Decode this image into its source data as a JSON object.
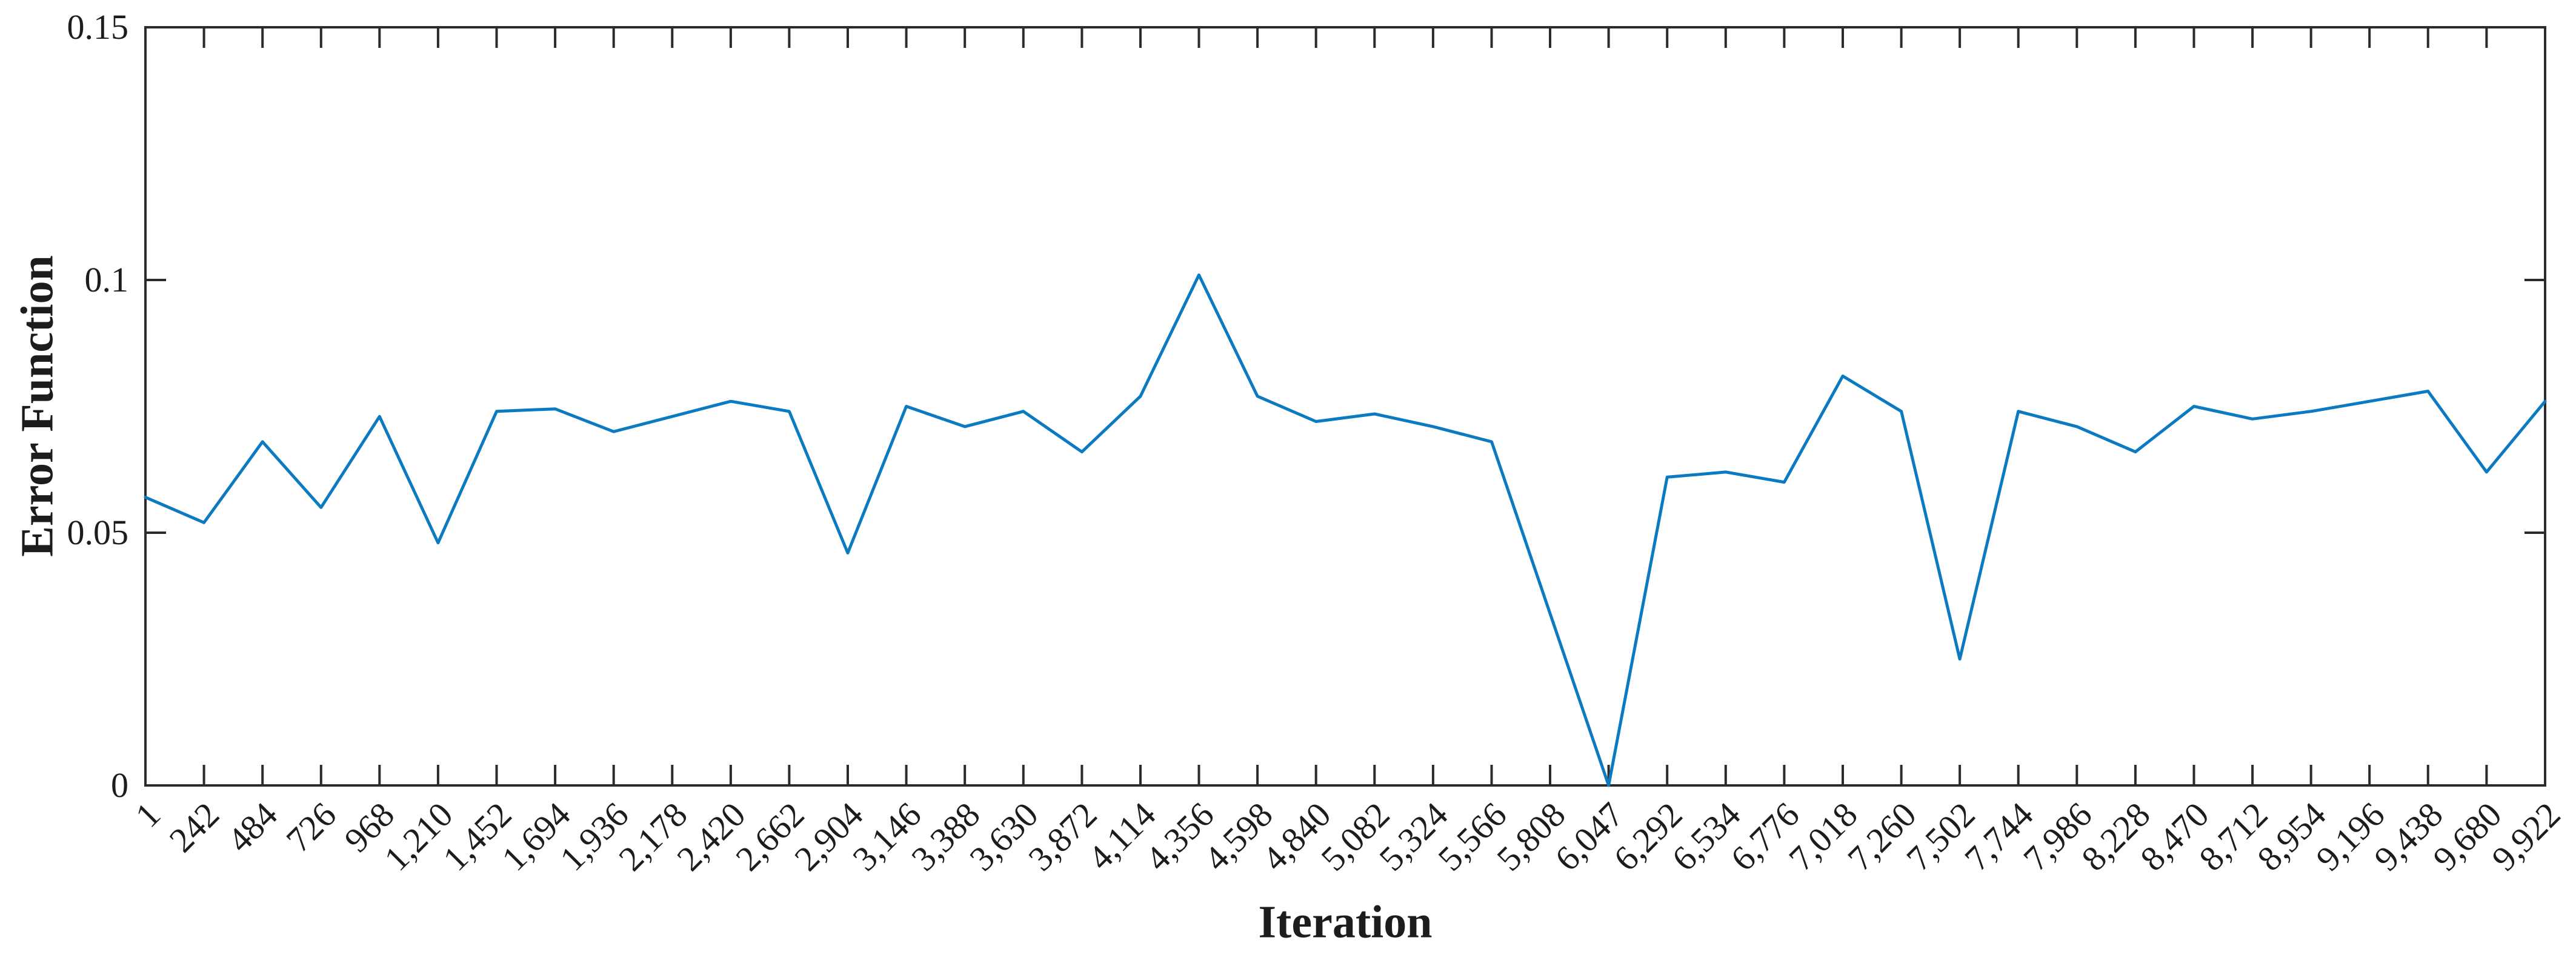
{
  "chart_data": {
    "type": "line",
    "title": "",
    "xlabel": "Iteration",
    "ylabel": "Error Function",
    "legend": "none",
    "grid": false,
    "box": true,
    "tick_direction": "in",
    "line_color": "#0b7ac0",
    "axis_color": "#2b2b2b",
    "text_color": "#1c1c1c",
    "background_color": "#ffffff",
    "ylim": [
      0,
      0.15
    ],
    "yticks": [
      0,
      0.05,
      0.1,
      0.15
    ],
    "ytick_labels": [
      "0",
      "0.05",
      "0.1",
      "0.15"
    ],
    "categories": [
      "1",
      "242",
      "484",
      "726",
      "968",
      "1,210",
      "1,452",
      "1,694",
      "1,936",
      "2,178",
      "2,420",
      "2,662",
      "2,904",
      "3,146",
      "3,388",
      "3,630",
      "3,872",
      "4,114",
      "4,356",
      "4,598",
      "4,840",
      "5,082",
      "5,324",
      "5,566",
      "5,808",
      "6,047",
      "6,292",
      "6,534",
      "6,776",
      "7,018",
      "7,260",
      "7,502",
      "7,744",
      "7,986",
      "8,228",
      "8,470",
      "8,712",
      "8,954",
      "9,196",
      "9,438",
      "9,680",
      "9,922"
    ],
    "values": [
      0.057,
      0.052,
      0.068,
      0.055,
      0.073,
      0.048,
      0.074,
      0.0745,
      0.07,
      0.073,
      0.076,
      0.074,
      0.046,
      0.075,
      0.071,
      0.074,
      0.066,
      0.077,
      0.101,
      0.077,
      0.072,
      0.0735,
      0.071,
      0.068,
      0.034,
      0.0,
      0.061,
      0.062,
      0.06,
      0.081,
      0.074,
      0.025,
      0.074,
      0.071,
      0.066,
      0.075,
      0.0725,
      0.074,
      0.076,
      0.078,
      0.062,
      0.076
    ]
  }
}
